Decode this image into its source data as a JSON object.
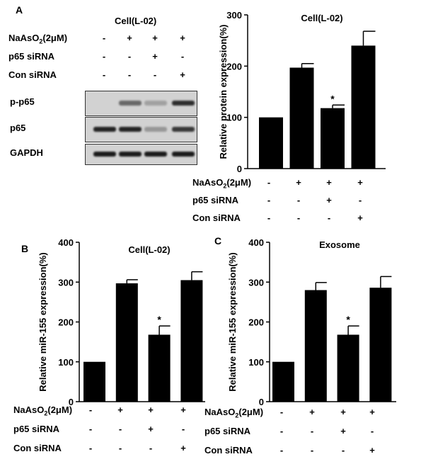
{
  "panels": {
    "a": "A",
    "b": "B",
    "c": "C"
  },
  "blot": {
    "title": "Cell(L-02)",
    "conditions": [
      {
        "label": "NaAsO",
        "sub": "2",
        "suffix": "(2μM)",
        "signs": [
          "-",
          "+",
          "+",
          "+"
        ]
      },
      {
        "label": "p65 siRNA",
        "signs": [
          "-",
          "-",
          "+",
          "-"
        ]
      },
      {
        "label": "Con siRNA",
        "signs": [
          "-",
          "-",
          "-",
          "+"
        ]
      }
    ],
    "rows": [
      {
        "label": "p-p65",
        "intensity": [
          0.0,
          0.55,
          0.25,
          0.85
        ]
      },
      {
        "label": "p65",
        "intensity": [
          0.9,
          0.9,
          0.3,
          0.8
        ]
      },
      {
        "label": "GAPDH",
        "intensity": [
          0.95,
          0.95,
          0.95,
          0.95
        ]
      }
    ]
  },
  "treatment_rows": [
    {
      "label": "NaAsO",
      "sub": "2",
      "suffix": "(2μM)",
      "signs": [
        "-",
        "+",
        "+",
        "+"
      ]
    },
    {
      "label": "p65 siRNA",
      "signs": [
        "-",
        "-",
        "+",
        "-"
      ]
    },
    {
      "label": "Con siRNA",
      "signs": [
        "-",
        "-",
        "-",
        "+"
      ]
    }
  ],
  "chart_data": [
    {
      "type": "bar",
      "panel": "A",
      "title": "Cell(L-02)",
      "ylabel": "Relative protein expression(%)",
      "ylim": [
        0,
        300
      ],
      "yticks": [
        0,
        100,
        200,
        300
      ],
      "values": [
        100,
        197,
        118,
        240
      ],
      "errors": [
        0,
        8,
        6,
        28
      ],
      "significance": [
        "",
        "",
        "*",
        ""
      ],
      "color": "#000000"
    },
    {
      "type": "bar",
      "panel": "B",
      "title": "Cell(L-02)",
      "ylabel": "Relative miR-155 expression(%)",
      "ylim": [
        0,
        400
      ],
      "yticks": [
        0,
        100,
        200,
        300,
        400
      ],
      "values": [
        100,
        297,
        168,
        305
      ],
      "errors": [
        0,
        9,
        22,
        21
      ],
      "significance": [
        "",
        "",
        "*",
        ""
      ],
      "color": "#000000"
    },
    {
      "type": "bar",
      "panel": "C",
      "title": "Exosome",
      "ylabel": "Relative miR-155 expression(%)",
      "ylim": [
        0,
        400
      ],
      "yticks": [
        0,
        100,
        200,
        300,
        400
      ],
      "values": [
        100,
        280,
        168,
        286
      ],
      "errors": [
        0,
        19,
        22,
        28
      ],
      "significance": [
        "",
        "",
        "*",
        ""
      ],
      "color": "#000000"
    }
  ]
}
